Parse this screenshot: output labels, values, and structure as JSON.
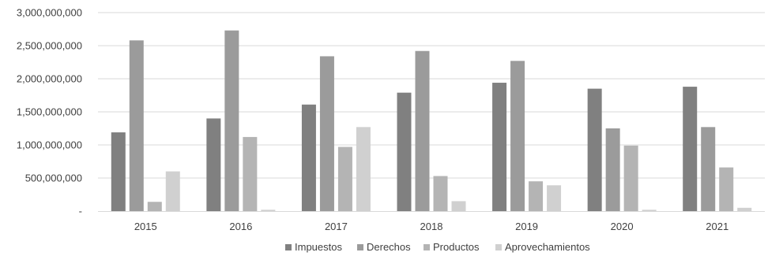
{
  "chart_data": {
    "type": "bar",
    "title": "",
    "xlabel": "",
    "ylabel": "",
    "categories": [
      "2015",
      "2016",
      "2017",
      "2018",
      "2019",
      "2020",
      "2021"
    ],
    "ylim": [
      0,
      3000000000
    ],
    "yticks": [
      0,
      500000000,
      1000000000,
      1500000000,
      2000000000,
      2500000000,
      3000000000
    ],
    "ytick_labels": [
      "-",
      "500,000,000",
      "1,000,000,000",
      "1,500,000,000",
      "2,000,000,000",
      "2,500,000,000",
      "3,000,000,000"
    ],
    "grid": true,
    "legend_position": "bottom",
    "series": [
      {
        "name": "Impuestos",
        "color": "#808080",
        "values": [
          1190000000,
          1400000000,
          1610000000,
          1790000000,
          1940000000,
          1850000000,
          1880000000
        ]
      },
      {
        "name": "Derechos",
        "color": "#9b9b9b",
        "values": [
          2580000000,
          2730000000,
          2340000000,
          2420000000,
          2270000000,
          1250000000,
          1270000000
        ]
      },
      {
        "name": "Productos",
        "color": "#b4b4b4",
        "values": [
          140000000,
          1120000000,
          970000000,
          530000000,
          450000000,
          990000000,
          660000000
        ]
      },
      {
        "name": "Aprovechamientos",
        "color": "#d0d0d0",
        "values": [
          600000000,
          20000000,
          1270000000,
          150000000,
          390000000,
          20000000,
          50000000
        ]
      }
    ]
  }
}
